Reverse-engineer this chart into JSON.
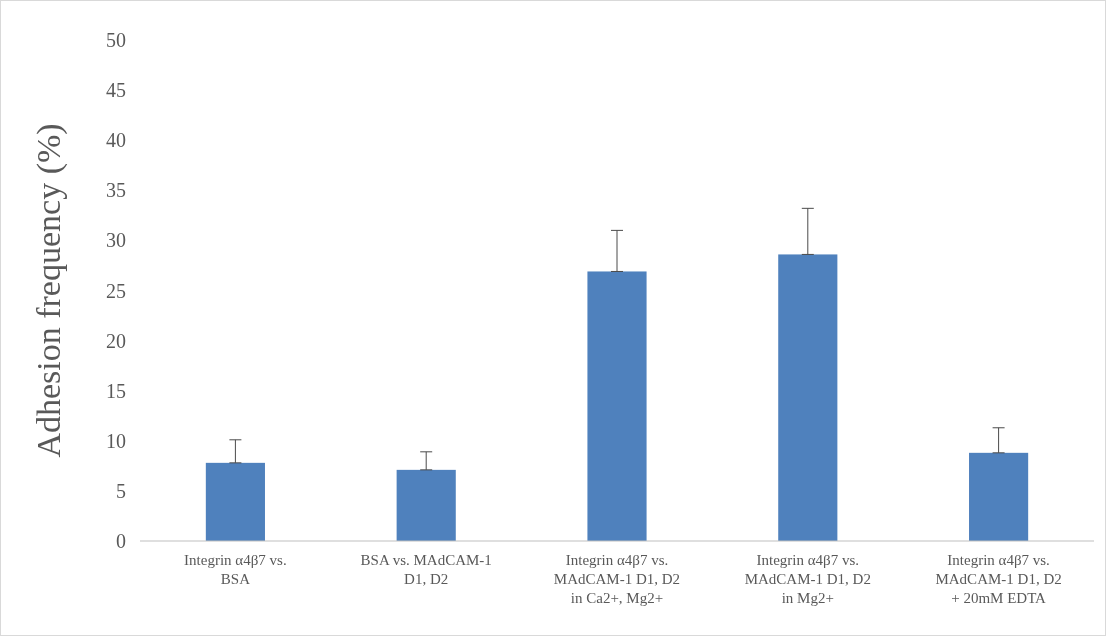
{
  "chart_data": {
    "type": "bar",
    "ylabel": "Adhesion  frequency  (%)",
    "categories": [
      "Integrin α4β7 vs. BSA",
      "BSA vs. MAdCAM-1 D1, D2",
      "Integrin α4β7 vs. MAdCAM-1 D1, D2 in Ca2+, Mg2+",
      "Integrin α4β7 vs. MAdCAM-1 D1, D2 in Mg2+",
      "Integrin α4β7 vs. MAdCAM-1 D1, D2 + 20mM EDTA"
    ],
    "values": [
      7.8,
      7.1,
      26.9,
      28.6,
      8.8
    ],
    "errors": [
      [
        7.8,
        10.1
      ],
      [
        7.1,
        8.9
      ],
      [
        26.9,
        31.0
      ],
      [
        28.6,
        33.2
      ],
      [
        8.8,
        11.3
      ]
    ],
    "color": "#4f81bd",
    "ylim": [
      0,
      50
    ],
    "yticks": [
      0,
      5,
      10,
      15,
      20,
      25,
      30,
      35,
      40,
      45,
      50
    ],
    "grid": false
  }
}
